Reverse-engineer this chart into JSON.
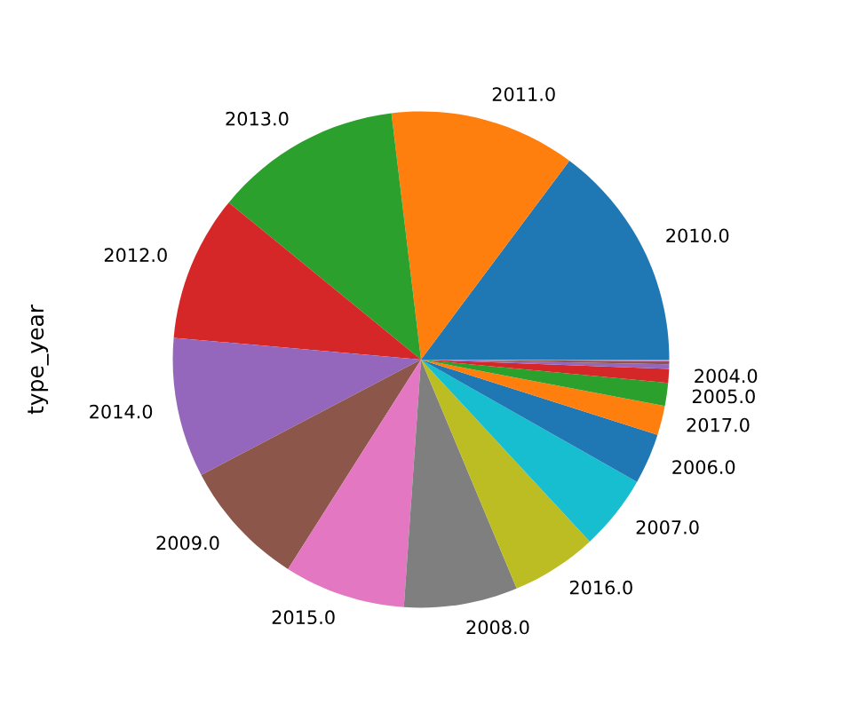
{
  "chart_data": {
    "type": "pie",
    "ylabel": "type_year",
    "categories": [
      "2010.0",
      "2011.0",
      "2013.0",
      "2012.0",
      "2014.0",
      "2009.0",
      "2015.0",
      "2008.0",
      "2016.0",
      "2007.0",
      "2006.0",
      "2017.0",
      "2005.0",
      "2004.0",
      null,
      null,
      null
    ],
    "values": [
      14.8,
      12.1,
      12.2,
      9.5,
      9.1,
      8.3,
      7.9,
      7.4,
      5.6,
      4.9,
      3.3,
      1.9,
      1.5,
      0.9,
      0.3,
      0.2,
      0.1
    ],
    "colors": [
      "#1f77b4",
      "#ff7f0e",
      "#2ca02c",
      "#d62728",
      "#9467bd",
      "#8c564b",
      "#e377c2",
      "#7f7f7f",
      "#bcbd22",
      "#17becf",
      "#1f77b4",
      "#ff7f0e",
      "#2ca02c",
      "#d62728",
      "#9467bd",
      "#8c564b",
      "#e377c2"
    ]
  }
}
